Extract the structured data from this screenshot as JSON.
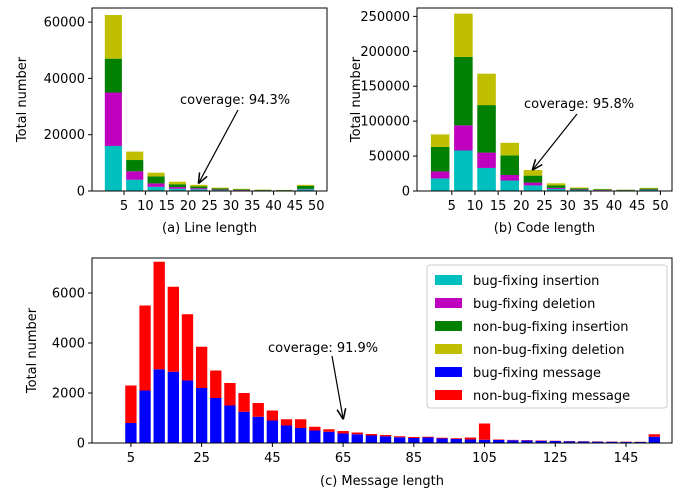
{
  "colors": {
    "cyan": "#00bfbf",
    "magenta": "#bf00bf",
    "green": "#008000",
    "olive": "#bfbf00",
    "blue": "#0000ff",
    "red": "#ff0000"
  },
  "chart_data": [
    {
      "type": "bar",
      "stacked": true,
      "xlabel": "(a) Line length",
      "ylabel": "Total number",
      "x": [
        2.5,
        7.5,
        12.5,
        17.5,
        22.5,
        27.5,
        32.5,
        37.5,
        42.5,
        47.5
      ],
      "xticks": [
        5,
        10,
        15,
        20,
        25,
        30,
        35,
        40,
        45,
        50
      ],
      "ylim": [
        0,
        65000
      ],
      "yticks": [
        0,
        20000,
        40000,
        60000
      ],
      "annotation": {
        "text": "coverage: 94.3%",
        "x": 22.5,
        "y": 2200
      },
      "series": [
        {
          "name": "bug-fixing insertion",
          "color": "cyan",
          "values": [
            16000,
            4000,
            1500,
            800,
            600,
            300,
            200,
            150,
            100,
            600
          ]
        },
        {
          "name": "bug-fixing deletion",
          "color": "magenta",
          "values": [
            19000,
            3000,
            1200,
            600,
            400,
            200,
            120,
            80,
            60,
            150
          ]
        },
        {
          "name": "non-bug-fixing insertion",
          "color": "green",
          "values": [
            12000,
            4000,
            2500,
            1000,
            600,
            400,
            250,
            150,
            150,
            1100
          ]
        },
        {
          "name": "non-bug-fixing deletion",
          "color": "olive",
          "values": [
            15500,
            3000,
            1300,
            900,
            600,
            300,
            200,
            120,
            80,
            350
          ]
        }
      ]
    },
    {
      "type": "bar",
      "stacked": true,
      "xlabel": "(b) Code length",
      "ylabel": "Total number",
      "x": [
        2.5,
        7.5,
        12.5,
        17.5,
        22.5,
        27.5,
        32.5,
        37.5,
        42.5,
        47.5
      ],
      "xticks": [
        5,
        10,
        15,
        20,
        25,
        30,
        35,
        40,
        45,
        50
      ],
      "ylim": [
        0,
        262000
      ],
      "yticks": [
        0,
        50000,
        100000,
        150000,
        200000,
        250000
      ],
      "annotation": {
        "text": "coverage: 95.8%",
        "x": 22.5,
        "y": 28000
      },
      "series": [
        {
          "name": "bug-fixing insertion",
          "color": "cyan",
          "values": [
            18000,
            58000,
            33000,
            15000,
            8000,
            3000,
            1500,
            1000,
            700,
            1500
          ]
        },
        {
          "name": "bug-fixing deletion",
          "color": "magenta",
          "values": [
            10000,
            36000,
            22000,
            8000,
            4000,
            1500,
            700,
            400,
            300,
            500
          ]
        },
        {
          "name": "non-bug-fixing insertion",
          "color": "green",
          "values": [
            35000,
            98000,
            68000,
            28000,
            10000,
            3500,
            1500,
            1000,
            700,
            1500
          ]
        },
        {
          "name": "non-bug-fixing deletion",
          "color": "olive",
          "values": [
            18000,
            62000,
            45000,
            18000,
            8000,
            3000,
            1300,
            600,
            300,
            1000
          ]
        }
      ]
    },
    {
      "type": "bar",
      "stacked": true,
      "xlabel": "(c) Message length",
      "ylabel": "Total number",
      "x": [
        5,
        9,
        13,
        17,
        21,
        25,
        29,
        33,
        37,
        41,
        45,
        49,
        53,
        57,
        61,
        65,
        69,
        73,
        77,
        81,
        85,
        89,
        93,
        97,
        101,
        105,
        109,
        113,
        117,
        121,
        125,
        129,
        133,
        137,
        141,
        145,
        149,
        153
      ],
      "xticks": [
        5,
        25,
        45,
        65,
        85,
        105,
        125,
        145
      ],
      "ylim": [
        0,
        7400
      ],
      "yticks": [
        0,
        2000,
        4000,
        6000
      ],
      "annotation": {
        "text": "coverage: 91.9%",
        "x": 65,
        "y": 900
      },
      "series": [
        {
          "name": "bug-fixing message",
          "color": "blue",
          "values": [
            800,
            2100,
            2950,
            2850,
            2500,
            2200,
            1800,
            1500,
            1250,
            1050,
            900,
            700,
            600,
            500,
            450,
            380,
            350,
            300,
            270,
            230,
            200,
            220,
            180,
            160,
            140,
            130,
            120,
            110,
            100,
            90,
            80,
            70,
            60,
            55,
            50,
            45,
            40,
            250
          ]
        },
        {
          "name": "non-bug-fixing message",
          "color": "red",
          "values": [
            1500,
            3400,
            4300,
            3400,
            2650,
            1650,
            1100,
            900,
            750,
            550,
            400,
            250,
            350,
            150,
            100,
            100,
            70,
            60,
            50,
            40,
            40,
            30,
            30,
            30,
            80,
            650,
            20,
            15,
            15,
            15,
            10,
            10,
            10,
            10,
            10,
            10,
            10,
            100
          ]
        }
      ],
      "legend": {
        "location": "upper right",
        "entries": [
          "bug-fixing insertion",
          "bug-fixing deletion",
          "non-bug-fixing insertion",
          "non-bug-fixing deletion",
          "bug-fixing message",
          "non-bug-fixing message"
        ]
      }
    }
  ]
}
